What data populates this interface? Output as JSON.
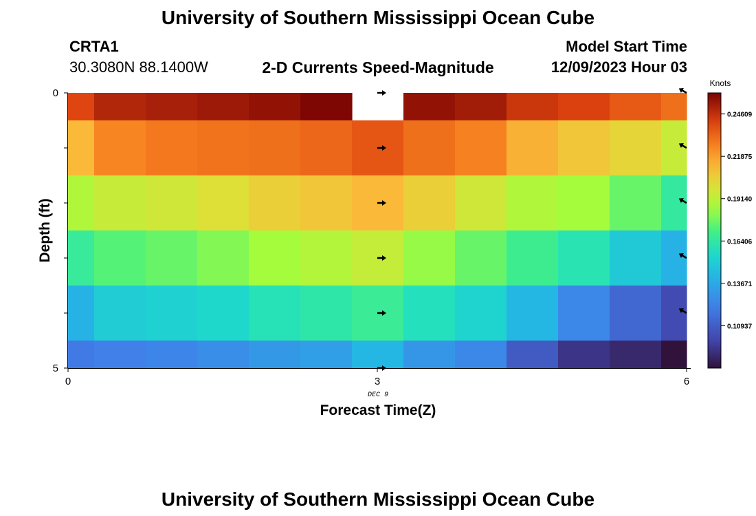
{
  "page": {
    "title": "University of Southern Mississippi Ocean Cube",
    "footer_title": "University of Southern Mississippi Ocean Cube"
  },
  "header": {
    "station_id": "CRTA1",
    "coordinates": "30.3080N  88.1400W",
    "chart_title": "2-D Currents Speed-Magnitude",
    "model_label": "Model Start Time",
    "model_time": "12/09/2023 Hour 03"
  },
  "chart_data": {
    "type": "heatmap",
    "title": "2-D Currents Speed-Magnitude",
    "xlabel": "Forecast Time(Z)",
    "xlabel_sub": "DEC 9",
    "ylabel": "Depth (ft)",
    "xlim": [
      0,
      6
    ],
    "ylim": [
      0,
      5
    ],
    "y_inverted": true,
    "x_ticks": [
      "0",
      "3",
      "6"
    ],
    "y_ticks": [
      "0",
      "5"
    ],
    "colorbar": {
      "label": "Knots",
      "range": [
        0.082,
        0.2597
      ],
      "ticks": [
        "0.24609",
        "0.21875",
        "0.19140",
        "0.16406",
        "0.13671",
        "0.10937"
      ],
      "tick_values": [
        0.24609,
        0.21875,
        0.1914,
        0.16406,
        0.13671,
        0.10937
      ]
    },
    "x_centers": [
      0,
      0.5,
      1,
      1.5,
      2,
      2.5,
      3,
      3.5,
      4,
      4.5,
      5,
      5.5,
      6
    ],
    "depth_rows": [
      0,
      1,
      2,
      3,
      4,
      5
    ],
    "speed_knots": [
      [
        0.24,
        0.249,
        0.251,
        0.253,
        0.255,
        0.259,
        null,
        0.255,
        0.252,
        0.244,
        0.241,
        0.235,
        0.23
      ],
      [
        0.212,
        0.225,
        0.228,
        0.229,
        0.23,
        0.232,
        0.236,
        0.23,
        0.226,
        0.214,
        0.208,
        0.203,
        0.194
      ],
      [
        0.188,
        0.194,
        0.196,
        0.2,
        0.205,
        0.208,
        0.212,
        0.205,
        0.196,
        0.188,
        0.185,
        0.176,
        0.165
      ],
      [
        0.166,
        0.173,
        0.176,
        0.18,
        0.185,
        0.189,
        0.193,
        0.183,
        0.176,
        0.168,
        0.161,
        0.149,
        0.14
      ],
      [
        0.14,
        0.15,
        0.152,
        0.155,
        0.16,
        0.163,
        0.167,
        0.159,
        0.153,
        0.142,
        0.125,
        0.113,
        0.102
      ],
      [
        0.12,
        0.122,
        0.124,
        0.127,
        0.131,
        0.133,
        0.142,
        0.13,
        0.125,
        0.108,
        0.094,
        0.09,
        0.082
      ]
    ],
    "arrows": [
      {
        "x": 3,
        "depth": 0,
        "angle_deg": 0
      },
      {
        "x": 3,
        "depth": 1,
        "angle_deg": 0
      },
      {
        "x": 3,
        "depth": 2,
        "angle_deg": 0
      },
      {
        "x": 3,
        "depth": 3,
        "angle_deg": 0
      },
      {
        "x": 3,
        "depth": 4,
        "angle_deg": 0
      },
      {
        "x": 3,
        "depth": 5,
        "angle_deg": 0
      },
      {
        "x": 6,
        "depth": 0,
        "angle_deg": 150
      },
      {
        "x": 6,
        "depth": 1,
        "angle_deg": 150
      },
      {
        "x": 6,
        "depth": 2,
        "angle_deg": 150
      },
      {
        "x": 6,
        "depth": 3,
        "angle_deg": 150
      },
      {
        "x": 6,
        "depth": 4,
        "angle_deg": 150
      }
    ]
  }
}
